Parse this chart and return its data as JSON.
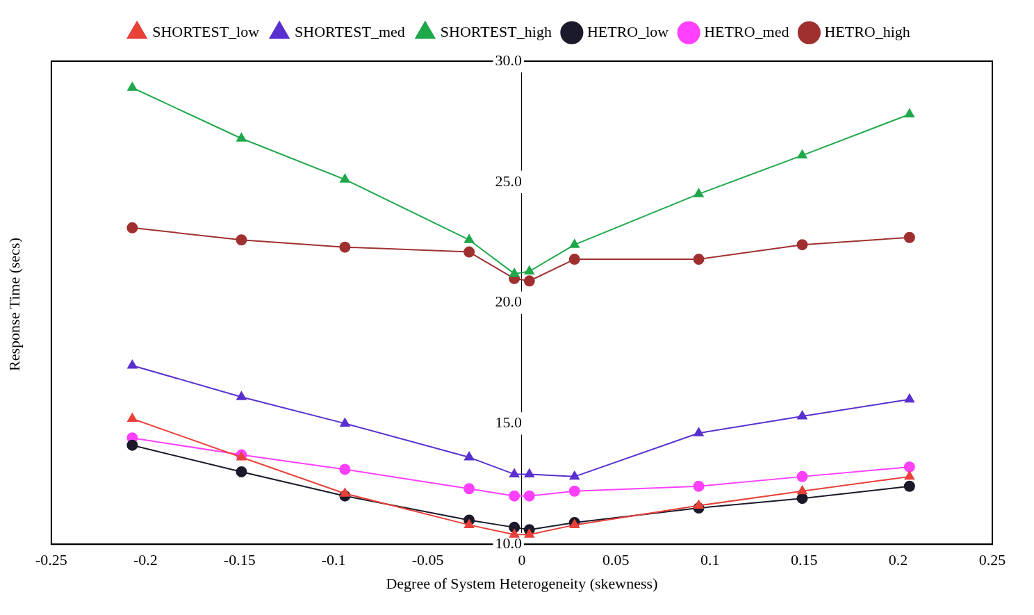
{
  "chart_data": {
    "type": "line",
    "xlabel": "Degree of System Heterogeneity (skewness)",
    "ylabel": "Response Time (secs)",
    "x": [
      -0.207,
      -0.149,
      -0.094,
      -0.028,
      -0.004,
      0.004,
      0.028,
      0.094,
      0.149,
      0.206
    ],
    "xlim": [
      -0.25,
      0.25
    ],
    "xticks": [
      -0.25,
      -0.2,
      -0.15,
      -0.1,
      -0.05,
      0,
      0.05,
      0.1,
      0.15,
      0.2,
      0.25
    ],
    "ylim": [
      10,
      30
    ],
    "yticks": [
      {
        "value": 10,
        "label": "10.0"
      },
      {
        "value": 15,
        "label": "15.0"
      },
      {
        "value": 20,
        "label": "20.0"
      },
      {
        "value": 25,
        "label": "25.0"
      },
      {
        "value": 30,
        "label": "30.0"
      }
    ],
    "grid": false,
    "legend": "top",
    "line_style": "solid",
    "series": [
      {
        "name": "SHORTEST_low",
        "color": "#e8413a",
        "marker": "triangle",
        "values": [
          15.2,
          13.6,
          12.1,
          10.8,
          10.4,
          10.4,
          10.8,
          11.6,
          12.2,
          12.8
        ]
      },
      {
        "name": "SHORTEST_med",
        "color": "#5a2fd0",
        "marker": "triangle",
        "values": [
          17.4,
          16.1,
          15.0,
          13.6,
          12.9,
          12.9,
          12.8,
          14.6,
          15.3,
          16.0
        ]
      },
      {
        "name": "SHORTEST_high",
        "color": "#1fa84a",
        "marker": "triangle",
        "values": [
          28.9,
          26.8,
          25.1,
          22.6,
          21.2,
          21.3,
          22.4,
          24.5,
          26.1,
          27.8
        ]
      },
      {
        "name": "HETRO_low",
        "color": "#1a1a2a",
        "marker": "circle",
        "values": [
          14.1,
          13.0,
          12.0,
          11.0,
          10.7,
          10.6,
          10.9,
          11.5,
          11.9,
          12.4
        ]
      },
      {
        "name": "HETRO_med",
        "color": "#ff40ff",
        "marker": "circle",
        "values": [
          14.4,
          13.7,
          13.1,
          12.3,
          12.0,
          12.0,
          12.2,
          12.4,
          12.8,
          13.2
        ]
      },
      {
        "name": "HETRO_high",
        "color": "#a03030",
        "marker": "circle",
        "values": [
          23.1,
          22.6,
          22.3,
          22.1,
          21.0,
          20.9,
          21.8,
          21.8,
          22.4,
          22.7
        ]
      }
    ]
  }
}
